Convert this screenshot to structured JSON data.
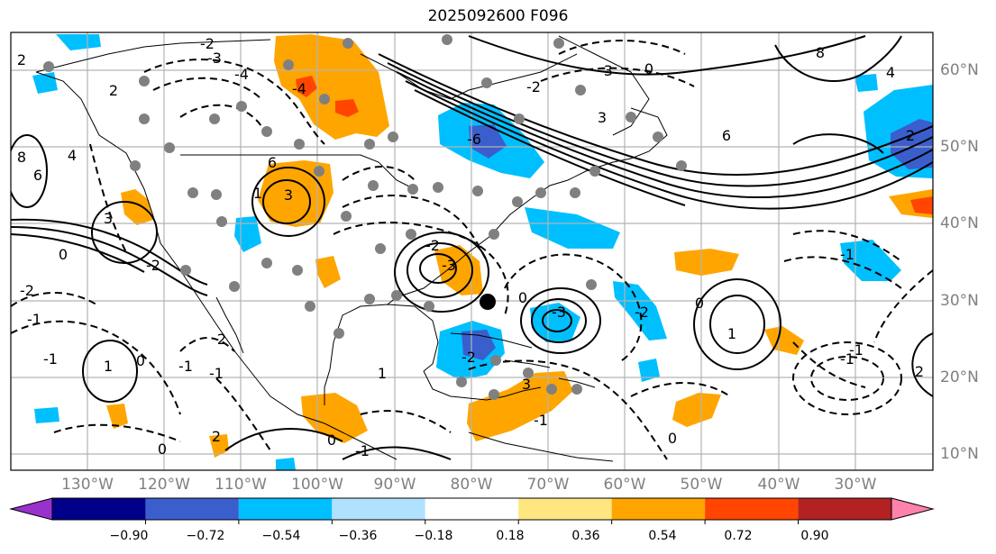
{
  "title": "2025092600 F096",
  "lon_labels": [
    "130°W",
    "120°W",
    "110°W",
    "100°W",
    "90°W",
    "80°W",
    "70°W",
    "60°W",
    "50°W",
    "40°W",
    "30°W"
  ],
  "lat_labels": [
    "60°N",
    "50°N",
    "40°N",
    "30°N",
    "20°N",
    "10°N"
  ],
  "colorbar": {
    "ticks": [
      "−0.90",
      "−0.72",
      "−0.54",
      "−0.36",
      "−0.18",
      "0.18",
      "0.36",
      "0.54",
      "0.72",
      "0.90"
    ],
    "colors": [
      "#9932cc",
      "#00008b",
      "#3a5fcd",
      "#00bfff",
      "#b0e2ff",
      "#ffffff",
      "#ffe680",
      "#ffa500",
      "#ff4500",
      "#b22222",
      "#ff82ab"
    ]
  },
  "contour_labels": [
    "2",
    "3",
    "8",
    "6",
    "4",
    "2",
    "0",
    "-2",
    "-1",
    "6",
    "-4",
    "-3",
    "-2",
    "3",
    "6",
    "8",
    "4",
    "-6",
    "2",
    "3",
    "-2",
    "0",
    "1",
    "-1",
    "0",
    "-1",
    "-3",
    "-2",
    "2",
    "3",
    "-2",
    "-3",
    "2",
    "0",
    "-1",
    "1",
    "0",
    "-1",
    "1",
    "-1",
    "0",
    "-1",
    "0",
    "2",
    "-2",
    "-1",
    "1",
    "-4",
    "-3",
    "-2",
    "-1",
    "0"
  ],
  "legend_colors": {
    "dark_orange": "#ffa500",
    "red": "#ff4500",
    "deep_sky_blue": "#00bfff",
    "royal_blue": "#3a5fcd",
    "grid": "#b3b3b3",
    "marker": "#808080"
  }
}
